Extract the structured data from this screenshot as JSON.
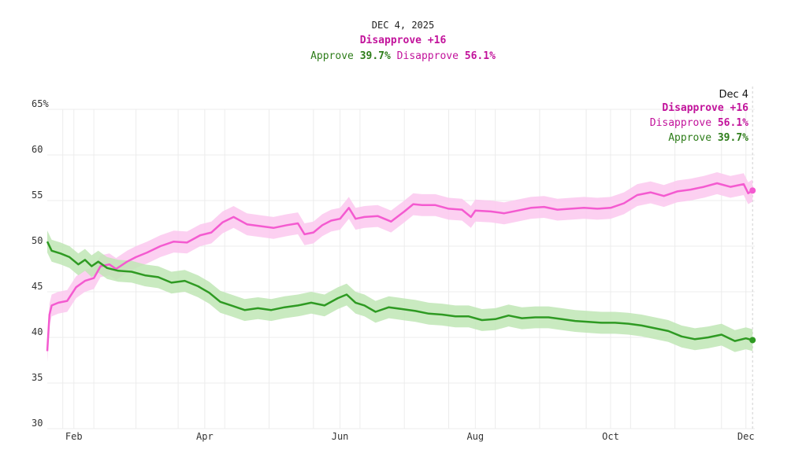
{
  "header": {
    "date": "DEC 4, 2025",
    "net_label": "Disapprove +16",
    "approve_label": "Approve",
    "approve_value": "39.7%",
    "disapprove_label": "Disapprove",
    "disapprove_value": "56.1%"
  },
  "tooltip": {
    "date": "Dec 4",
    "net_label": "Disapprove +16",
    "disapprove_label": "Disapprove",
    "disapprove_value": "56.1%",
    "approve_label": "Approve",
    "approve_value": "39.7%"
  },
  "colors": {
    "approve": "#2e9a22",
    "approve_band": "#bfe6b5",
    "disapprove": "#f45ad0",
    "disapprove_band": "#fcc8ef",
    "grid": "#ececec"
  },
  "chart_data": {
    "type": "line",
    "title": "",
    "xlabel": "",
    "ylabel": "",
    "ylim": [
      30,
      65
    ],
    "y_ticks": [
      {
        "value": 30,
        "label": "30"
      },
      {
        "value": 35,
        "label": "35"
      },
      {
        "value": 40,
        "label": "40"
      },
      {
        "value": 45,
        "label": "45"
      },
      {
        "value": 50,
        "label": "50"
      },
      {
        "value": 55,
        "label": "55"
      },
      {
        "value": 60,
        "label": "60"
      },
      {
        "value": 65,
        "label": "65%"
      }
    ],
    "x_range": [
      "2025-01-20",
      "2025-12-05"
    ],
    "x_ticks": [
      {
        "date": "2025-02-01",
        "label": "Feb"
      },
      {
        "date": "2025-04-01",
        "label": "Apr"
      },
      {
        "date": "2025-06-01",
        "label": "Jun"
      },
      {
        "date": "2025-08-01",
        "label": "Aug"
      },
      {
        "date": "2025-10-01",
        "label": "Oct"
      },
      {
        "date": "2025-12-01",
        "label": "Dec"
      }
    ],
    "x_gridlines": [
      "2025-01-27",
      "2025-02-10",
      "2025-03-01",
      "2025-03-20",
      "2025-04-10",
      "2025-04-30",
      "2025-05-20",
      "2025-06-10",
      "2025-06-30",
      "2025-07-20",
      "2025-08-10",
      "2025-08-30",
      "2025-09-20",
      "2025-10-10",
      "2025-10-30",
      "2025-11-20"
    ],
    "hover_date": "2025-12-04",
    "grid": true,
    "series": [
      {
        "name": "Disapprove",
        "band": 1.2,
        "points": [
          [
            "2025-01-20",
            38.5
          ],
          [
            "2025-01-21",
            42.5
          ],
          [
            "2025-01-22",
            43.5
          ],
          [
            "2025-01-25",
            43.8
          ],
          [
            "2025-01-29",
            44.0
          ],
          [
            "2025-02-02",
            45.5
          ],
          [
            "2025-02-06",
            46.2
          ],
          [
            "2025-02-10",
            46.5
          ],
          [
            "2025-02-13",
            47.8
          ],
          [
            "2025-02-17",
            48.0
          ],
          [
            "2025-02-20",
            47.5
          ],
          [
            "2025-02-25",
            48.3
          ],
          [
            "2025-03-01",
            48.8
          ],
          [
            "2025-03-06",
            49.3
          ],
          [
            "2025-03-12",
            50.0
          ],
          [
            "2025-03-18",
            50.5
          ],
          [
            "2025-03-24",
            50.4
          ],
          [
            "2025-03-30",
            51.2
          ],
          [
            "2025-04-04",
            51.5
          ],
          [
            "2025-04-09",
            52.6
          ],
          [
            "2025-04-14",
            53.2
          ],
          [
            "2025-04-20",
            52.4
          ],
          [
            "2025-04-26",
            52.2
          ],
          [
            "2025-05-02",
            52.0
          ],
          [
            "2025-05-08",
            52.3
          ],
          [
            "2025-05-13",
            52.5
          ],
          [
            "2025-05-16",
            51.3
          ],
          [
            "2025-05-20",
            51.5
          ],
          [
            "2025-05-24",
            52.3
          ],
          [
            "2025-05-28",
            52.8
          ],
          [
            "2025-06-01",
            53.0
          ],
          [
            "2025-06-05",
            54.2
          ],
          [
            "2025-06-08",
            53.0
          ],
          [
            "2025-06-12",
            53.2
          ],
          [
            "2025-06-18",
            53.3
          ],
          [
            "2025-06-24",
            52.7
          ],
          [
            "2025-06-30",
            53.8
          ],
          [
            "2025-07-04",
            54.6
          ],
          [
            "2025-07-08",
            54.5
          ],
          [
            "2025-07-14",
            54.5
          ],
          [
            "2025-07-20",
            54.1
          ],
          [
            "2025-07-26",
            54.0
          ],
          [
            "2025-07-30",
            53.2
          ],
          [
            "2025-08-01",
            53.9
          ],
          [
            "2025-08-08",
            53.8
          ],
          [
            "2025-08-14",
            53.6
          ],
          [
            "2025-08-20",
            53.9
          ],
          [
            "2025-08-26",
            54.2
          ],
          [
            "2025-09-01",
            54.3
          ],
          [
            "2025-09-07",
            54.0
          ],
          [
            "2025-09-13",
            54.1
          ],
          [
            "2025-09-19",
            54.2
          ],
          [
            "2025-09-25",
            54.1
          ],
          [
            "2025-10-01",
            54.2
          ],
          [
            "2025-10-07",
            54.7
          ],
          [
            "2025-10-13",
            55.6
          ],
          [
            "2025-10-19",
            55.9
          ],
          [
            "2025-10-25",
            55.5
          ],
          [
            "2025-10-31",
            56.0
          ],
          [
            "2025-11-06",
            56.2
          ],
          [
            "2025-11-12",
            56.5
          ],
          [
            "2025-11-18",
            56.9
          ],
          [
            "2025-11-24",
            56.5
          ],
          [
            "2025-11-30",
            56.8
          ],
          [
            "2025-12-02",
            55.8
          ],
          [
            "2025-12-04",
            56.1
          ]
        ]
      },
      {
        "name": "Approve",
        "band": 1.2,
        "points": [
          [
            "2025-01-20",
            50.5
          ],
          [
            "2025-01-22",
            49.5
          ],
          [
            "2025-01-26",
            49.2
          ],
          [
            "2025-01-30",
            48.8
          ],
          [
            "2025-02-03",
            48.0
          ],
          [
            "2025-02-06",
            48.5
          ],
          [
            "2025-02-09",
            47.8
          ],
          [
            "2025-02-12",
            48.3
          ],
          [
            "2025-02-16",
            47.6
          ],
          [
            "2025-02-21",
            47.3
          ],
          [
            "2025-02-27",
            47.2
          ],
          [
            "2025-03-05",
            46.8
          ],
          [
            "2025-03-11",
            46.6
          ],
          [
            "2025-03-17",
            46.0
          ],
          [
            "2025-03-23",
            46.2
          ],
          [
            "2025-03-29",
            45.6
          ],
          [
            "2025-04-03",
            44.9
          ],
          [
            "2025-04-08",
            43.9
          ],
          [
            "2025-04-13",
            43.5
          ],
          [
            "2025-04-19",
            43.0
          ],
          [
            "2025-04-25",
            43.2
          ],
          [
            "2025-05-01",
            43.0
          ],
          [
            "2025-05-07",
            43.3
          ],
          [
            "2025-05-13",
            43.5
          ],
          [
            "2025-05-19",
            43.8
          ],
          [
            "2025-05-25",
            43.5
          ],
          [
            "2025-05-31",
            44.3
          ],
          [
            "2025-06-04",
            44.7
          ],
          [
            "2025-06-08",
            43.8
          ],
          [
            "2025-06-12",
            43.5
          ],
          [
            "2025-06-17",
            42.8
          ],
          [
            "2025-06-23",
            43.3
          ],
          [
            "2025-06-29",
            43.1
          ],
          [
            "2025-07-05",
            42.9
          ],
          [
            "2025-07-11",
            42.6
          ],
          [
            "2025-07-17",
            42.5
          ],
          [
            "2025-07-23",
            42.3
          ],
          [
            "2025-07-29",
            42.3
          ],
          [
            "2025-08-04",
            41.9
          ],
          [
            "2025-08-10",
            42.0
          ],
          [
            "2025-08-16",
            42.4
          ],
          [
            "2025-08-22",
            42.1
          ],
          [
            "2025-08-28",
            42.2
          ],
          [
            "2025-09-03",
            42.2
          ],
          [
            "2025-09-09",
            42.0
          ],
          [
            "2025-09-15",
            41.8
          ],
          [
            "2025-09-21",
            41.7
          ],
          [
            "2025-09-27",
            41.6
          ],
          [
            "2025-10-03",
            41.6
          ],
          [
            "2025-10-09",
            41.5
          ],
          [
            "2025-10-15",
            41.3
          ],
          [
            "2025-10-21",
            41.0
          ],
          [
            "2025-10-27",
            40.7
          ],
          [
            "2025-11-02",
            40.1
          ],
          [
            "2025-11-08",
            39.8
          ],
          [
            "2025-11-14",
            40.0
          ],
          [
            "2025-11-20",
            40.3
          ],
          [
            "2025-11-26",
            39.6
          ],
          [
            "2025-12-01",
            39.9
          ],
          [
            "2025-12-04",
            39.7
          ]
        ]
      }
    ]
  }
}
